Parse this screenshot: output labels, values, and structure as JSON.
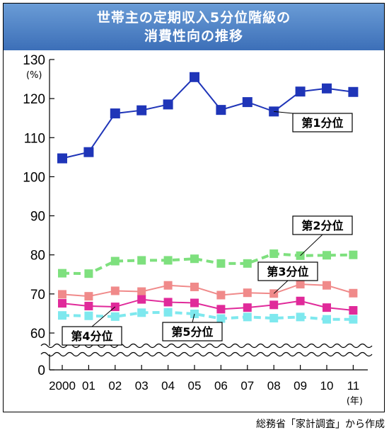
{
  "title_lines": [
    "世帯主の定期収入5分位階級の",
    "消費性向の推移"
  ],
  "source": "総務省「家計調査」から作成",
  "chart_data": {
    "type": "line",
    "title": "世帯主の定期収入5分位階級の消費性向の推移",
    "y_unit": "(%)",
    "x_unit": "(年)",
    "categories": [
      "2000",
      "01",
      "02",
      "03",
      "04",
      "05",
      "06",
      "07",
      "08",
      "09",
      "10",
      "11"
    ],
    "y_ticks": [
      0,
      60,
      70,
      80,
      90,
      100,
      110,
      120,
      130
    ],
    "ylim": [
      60,
      130
    ],
    "axis_break": true,
    "grid": false,
    "series": [
      {
        "name": "第1分位",
        "color": "#1f35b8",
        "dashed": false,
        "values": [
          104.7,
          106.3,
          116.2,
          117.0,
          118.5,
          125.5,
          117.1,
          119.1,
          116.7,
          121.8,
          122.6,
          121.7
        ]
      },
      {
        "name": "第2分位",
        "color": "#7ee07e",
        "dashed": true,
        "values": [
          75.3,
          75.2,
          78.4,
          78.6,
          78.6,
          79.0,
          77.8,
          77.8,
          80.3,
          79.8,
          79.9,
          80.0
        ]
      },
      {
        "name": "第3分位",
        "color": "#f08a8a",
        "dashed": false,
        "values": [
          69.9,
          69.4,
          70.8,
          70.6,
          72.2,
          71.8,
          69.7,
          70.3,
          70.1,
          72.5,
          72.2,
          70.2
        ]
      },
      {
        "name": "第4分位",
        "color": "#e02a9a",
        "dashed": false,
        "values": [
          67.6,
          66.9,
          66.7,
          68.6,
          67.9,
          67.7,
          66.1,
          66.5,
          67.2,
          68.2,
          66.5,
          65.8
        ]
      },
      {
        "name": "第5分位",
        "color": "#7ee8ee",
        "dashed": true,
        "values": [
          64.5,
          64.4,
          64.2,
          65.2,
          65.3,
          64.9,
          63.7,
          64.1,
          63.8,
          64.1,
          63.5,
          63.5
        ]
      }
    ]
  }
}
